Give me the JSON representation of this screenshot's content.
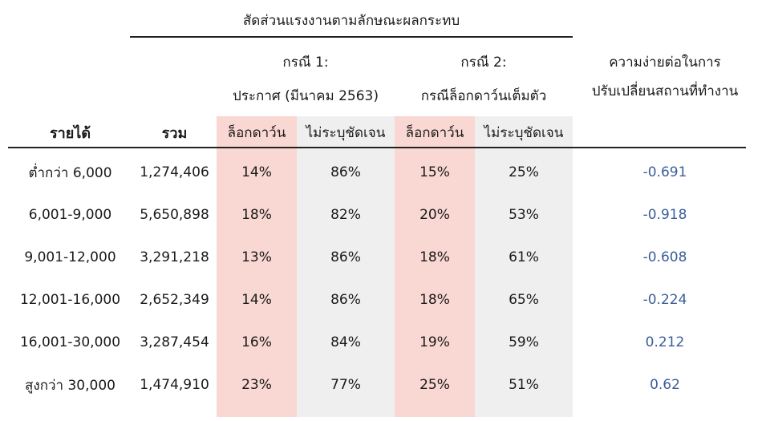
{
  "header": {
    "group_title": "สัดส่วนแรงงานตามลักษณะผลกระทบ",
    "case1_line1": "กรณี 1:",
    "case1_line2": "ประกาศ (มีนาคม 2563)",
    "case2_line1": "กรณี 2:",
    "case2_line2": "กรณีล็อกดาว์นเต็มตัว",
    "ease_line1": "ความง่ายต่อในการ",
    "ease_line2": "ปรับเปลี่ยนสถานที่ทำงาน",
    "income_label": "รายได้",
    "total_label": "รวม",
    "c1_lockdown": "ล็อกดาว์น",
    "c1_unclear": "ไม่ระบุชัดเจน",
    "c2_lockdown": "ล็อกดาว์น",
    "c2_unclear": "ไม่ระบุชัดเจน"
  },
  "rows": [
    {
      "income": "ต่ำกว่า 6,000",
      "total": "1,274,406",
      "c1_lockdown": "14%",
      "c1_unclear": "86%",
      "c2_lockdown": "15%",
      "c2_unclear": "25%",
      "ease": "-0.691"
    },
    {
      "income": "6,001-9,000",
      "total": "5,650,898",
      "c1_lockdown": "18%",
      "c1_unclear": "82%",
      "c2_lockdown": "20%",
      "c2_unclear": "53%",
      "ease": "-0.918"
    },
    {
      "income": "9,001-12,000",
      "total": "3,291,218",
      "c1_lockdown": "13%",
      "c1_unclear": "86%",
      "c2_lockdown": "18%",
      "c2_unclear": "61%",
      "ease": "-0.608"
    },
    {
      "income": "12,001-16,000",
      "total": "2,652,349",
      "c1_lockdown": "14%",
      "c1_unclear": "86%",
      "c2_lockdown": "18%",
      "c2_unclear": "65%",
      "ease": "-0.224"
    },
    {
      "income": "16,001-30,000",
      "total": "3,287,454",
      "c1_lockdown": "16%",
      "c1_unclear": "84%",
      "c2_lockdown": "19%",
      "c2_unclear": "59%",
      "ease": "0.212"
    },
    {
      "income": "สูงกว่า 30,000",
      "total": "1,474,910",
      "c1_lockdown": "23%",
      "c1_unclear": "77%",
      "c2_lockdown": "25%",
      "c2_unclear": "51%",
      "ease": "0.62"
    }
  ],
  "colors": {
    "lockdown_bg": "#f9d7d2",
    "unclear_bg": "#efefef",
    "ease_text": "#3b5f9a"
  }
}
